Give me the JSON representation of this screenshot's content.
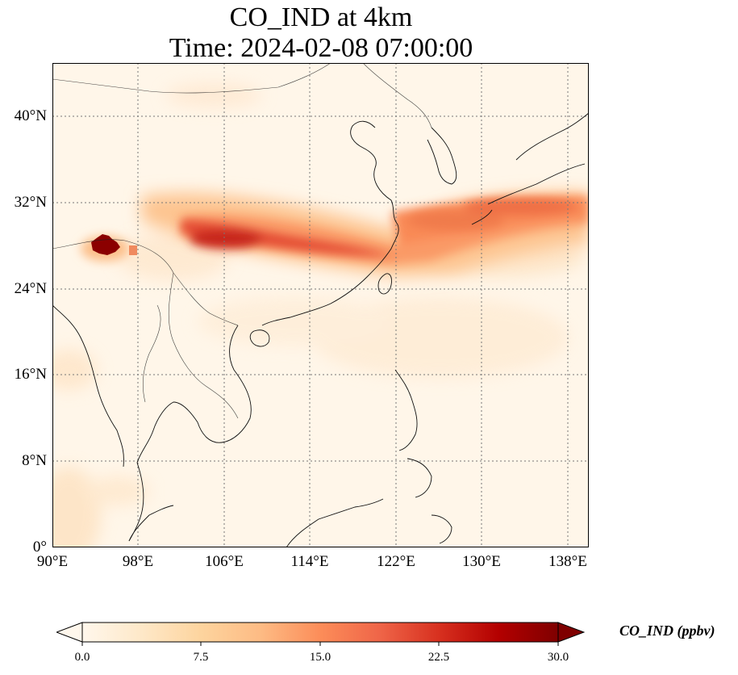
{
  "title": {
    "line1": "CO_IND at 4km",
    "line2": "Time: 2024-02-08 07:00:00"
  },
  "map": {
    "extent": {
      "lon": [
        90,
        140
      ],
      "lat": [
        0,
        45
      ]
    },
    "gridlines": "dotted",
    "lat_ticks": [
      {
        "value": 0,
        "label": "0°"
      },
      {
        "value": 8,
        "label": "8°N"
      },
      {
        "value": 16,
        "label": "16°N"
      },
      {
        "value": 24,
        "label": "24°N"
      },
      {
        "value": 32,
        "label": "32°N"
      },
      {
        "value": 40,
        "label": "40°N"
      }
    ],
    "lon_ticks": [
      {
        "value": 90,
        "label": "90°E"
      },
      {
        "value": 98,
        "label": "98°E"
      },
      {
        "value": 106,
        "label": "106°E"
      },
      {
        "value": 114,
        "label": "114°E"
      },
      {
        "value": 122,
        "label": "122°E"
      },
      {
        "value": 130,
        "label": "130°E"
      },
      {
        "value": 138,
        "label": "138°E"
      }
    ],
    "field": "CO_IND",
    "units": "ppbv"
  },
  "colorbar": {
    "label": "CO_IND (ppbv)",
    "colormap": "OrRd",
    "range": [
      0,
      30
    ],
    "extend": "both",
    "ticks": [
      "0.0",
      "7.5",
      "15.0",
      "22.5",
      "30.0"
    ],
    "colors": [
      "#fff7ec",
      "#fee8c8",
      "#fdd49e",
      "#fdbb84",
      "#fc8d59",
      "#ef6548",
      "#d7301f",
      "#b30000",
      "#7f0000"
    ]
  }
}
